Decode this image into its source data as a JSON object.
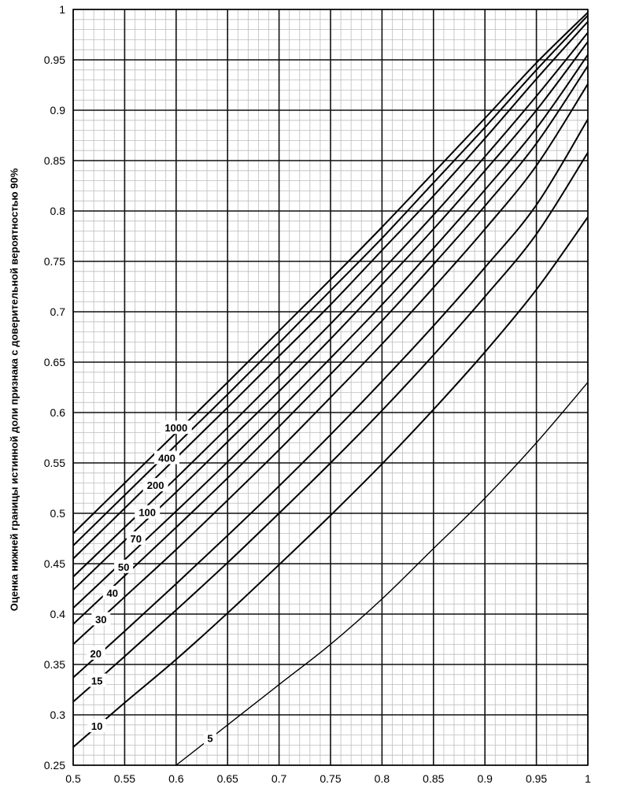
{
  "chart_data": {
    "type": "line",
    "title": "",
    "xlabel": "",
    "ylabel": "Оценка нижней границы истинной доли признака с доверительной вероятностью 90%",
    "xlim": [
      0.5,
      1.0
    ],
    "ylim": [
      0.25,
      1.0
    ],
    "x_ticks": [
      "0.5",
      "0.55",
      "0.6",
      "0.65",
      "0.7",
      "0.75",
      "0.8",
      "0.85",
      "0.9",
      "0.95",
      "1"
    ],
    "y_ticks": [
      "0.25",
      "0.3",
      "0.35",
      "0.4",
      "0.45",
      "0.5",
      "0.55",
      "0.6",
      "0.65",
      "0.7",
      "0.75",
      "0.8",
      "0.85",
      "0.9",
      "0.95",
      "1"
    ],
    "grid": true,
    "legend": "none",
    "series": [
      {
        "name": "5",
        "x": [
          0.6,
          0.65,
          0.7,
          0.75,
          0.8,
          0.85,
          0.9,
          0.95,
          1.0
        ],
        "values": [
          0.25,
          0.29,
          0.33,
          0.37,
          0.415,
          0.465,
          0.515,
          0.57,
          0.63
        ]
      },
      {
        "name": "10",
        "x": [
          0.5,
          0.55,
          0.6,
          0.65,
          0.7,
          0.75,
          0.8,
          0.85,
          0.9,
          0.95,
          1.0
        ],
        "values": [
          0.268,
          0.312,
          0.355,
          0.401,
          0.449,
          0.498,
          0.549,
          0.603,
          0.66,
          0.722,
          0.794
        ]
      },
      {
        "name": "15",
        "x": [
          0.5,
          0.55,
          0.6,
          0.65,
          0.7,
          0.75,
          0.8,
          0.85,
          0.9,
          0.95,
          1.0
        ],
        "values": [
          0.313,
          0.358,
          0.404,
          0.451,
          0.5,
          0.55,
          0.602,
          0.657,
          0.715,
          0.777,
          0.858
        ]
      },
      {
        "name": "20",
        "x": [
          0.5,
          0.55,
          0.6,
          0.65,
          0.7,
          0.75,
          0.8,
          0.85,
          0.9,
          0.95,
          1.0
        ],
        "values": [
          0.337,
          0.383,
          0.43,
          0.478,
          0.527,
          0.578,
          0.631,
          0.686,
          0.744,
          0.806,
          0.891
        ]
      },
      {
        "name": "30",
        "x": [
          0.5,
          0.55,
          0.6,
          0.65,
          0.7,
          0.75,
          0.8,
          0.85,
          0.9,
          0.95,
          1.0
        ],
        "values": [
          0.37,
          0.417,
          0.464,
          0.513,
          0.563,
          0.615,
          0.668,
          0.724,
          0.782,
          0.845,
          0.926
        ]
      },
      {
        "name": "40",
        "x": [
          0.5,
          0.55,
          0.6,
          0.65,
          0.7,
          0.75,
          0.8,
          0.85,
          0.9,
          0.95,
          1.0
        ],
        "values": [
          0.39,
          0.438,
          0.486,
          0.535,
          0.586,
          0.638,
          0.691,
          0.747,
          0.805,
          0.867,
          0.944
        ]
      },
      {
        "name": "50",
        "x": [
          0.5,
          0.55,
          0.6,
          0.65,
          0.7,
          0.75,
          0.8,
          0.85,
          0.9,
          0.95,
          1.0
        ],
        "values": [
          0.406,
          0.454,
          0.502,
          0.551,
          0.602,
          0.654,
          0.707,
          0.763,
          0.821,
          0.882,
          0.955
        ]
      },
      {
        "name": "70",
        "x": [
          0.5,
          0.55,
          0.6,
          0.65,
          0.7,
          0.75,
          0.8,
          0.85,
          0.9,
          0.95,
          1.0
        ],
        "values": [
          0.424,
          0.473,
          0.521,
          0.571,
          0.621,
          0.673,
          0.727,
          0.782,
          0.84,
          0.9,
          0.968
        ]
      },
      {
        "name": "100",
        "x": [
          0.5,
          0.55,
          0.6,
          0.65,
          0.7,
          0.75,
          0.8,
          0.85,
          0.9,
          0.95,
          1.0
        ],
        "values": [
          0.437,
          0.486,
          0.535,
          0.585,
          0.636,
          0.688,
          0.741,
          0.796,
          0.854,
          0.914,
          0.977
        ]
      },
      {
        "name": "200",
        "x": [
          0.5,
          0.55,
          0.6,
          0.65,
          0.7,
          0.75,
          0.8,
          0.85,
          0.9,
          0.95,
          1.0
        ],
        "values": [
          0.455,
          0.505,
          0.555,
          0.605,
          0.656,
          0.707,
          0.761,
          0.815,
          0.872,
          0.931,
          0.988
        ]
      },
      {
        "name": "400",
        "x": [
          0.5,
          0.55,
          0.6,
          0.65,
          0.7,
          0.75,
          0.8,
          0.85,
          0.9,
          0.95,
          1.0
        ],
        "values": [
          0.468,
          0.518,
          0.568,
          0.618,
          0.669,
          0.721,
          0.773,
          0.828,
          0.883,
          0.94,
          0.994
        ]
      },
      {
        "name": "1000",
        "x": [
          0.5,
          0.55,
          0.6,
          0.65,
          0.7,
          0.75,
          0.8,
          0.85,
          0.9,
          0.95,
          1.0
        ],
        "values": [
          0.48,
          0.53,
          0.58,
          0.63,
          0.681,
          0.732,
          0.784,
          0.838,
          0.892,
          0.947,
          0.997
        ]
      }
    ],
    "curve_labels": [
      {
        "text": "1000",
        "x": 0.6,
        "y": 0.585
      },
      {
        "text": "400",
        "x": 0.591,
        "y": 0.555
      },
      {
        "text": "200",
        "x": 0.58,
        "y": 0.528
      },
      {
        "text": "100",
        "x": 0.572,
        "y": 0.501
      },
      {
        "text": "70",
        "x": 0.561,
        "y": 0.475
      },
      {
        "text": "50",
        "x": 0.549,
        "y": 0.447
      },
      {
        "text": "40",
        "x": 0.538,
        "y": 0.421
      },
      {
        "text": "30",
        "x": 0.527,
        "y": 0.395
      },
      {
        "text": "20",
        "x": 0.522,
        "y": 0.361
      },
      {
        "text": "15",
        "x": 0.523,
        "y": 0.334
      },
      {
        "text": "10",
        "x": 0.523,
        "y": 0.289
      },
      {
        "text": "5",
        "x": 0.633,
        "y": 0.277
      }
    ]
  }
}
